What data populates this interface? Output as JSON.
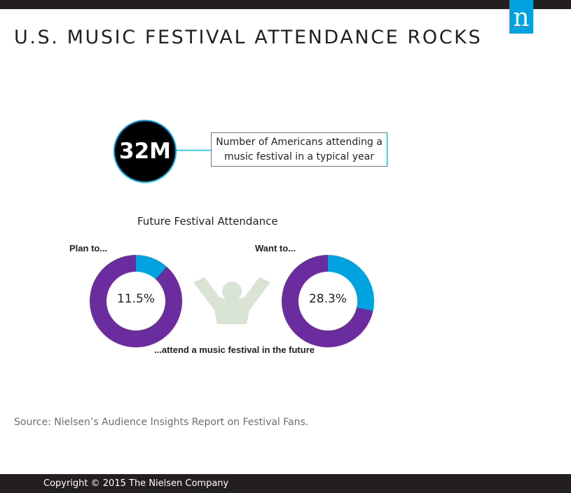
{
  "header": {
    "title": "U.S. MUSIC FESTIVAL ATTENDANCE ROCKS",
    "logo_letter": "n"
  },
  "stat": {
    "value": "32M",
    "description_line1": "Number of Americans attending a",
    "description_line2": "music festival in a typical year"
  },
  "colors": {
    "purple": "#6a2c9f",
    "blue": "#00a3e0",
    "figure_green": "#d9e4d5",
    "dark": "#231f20"
  },
  "icon": "person-arms-raised-icon",
  "chart_data": {
    "type": "pie",
    "title": "Future Festival Attendance",
    "donuts": [
      {
        "label": "Plan to...",
        "value": 11.5,
        "value_label": "11.5%"
      },
      {
        "label": "Want to...",
        "value": 28.3,
        "value_label": "28.3%"
      }
    ],
    "annotation": "...attend a music festival in the future"
  },
  "source": "Source: Nielsen’s Audience Insights Report on Festival Fans.",
  "footer": {
    "copyright": "Copyright © 2015 The Nielsen Company"
  }
}
